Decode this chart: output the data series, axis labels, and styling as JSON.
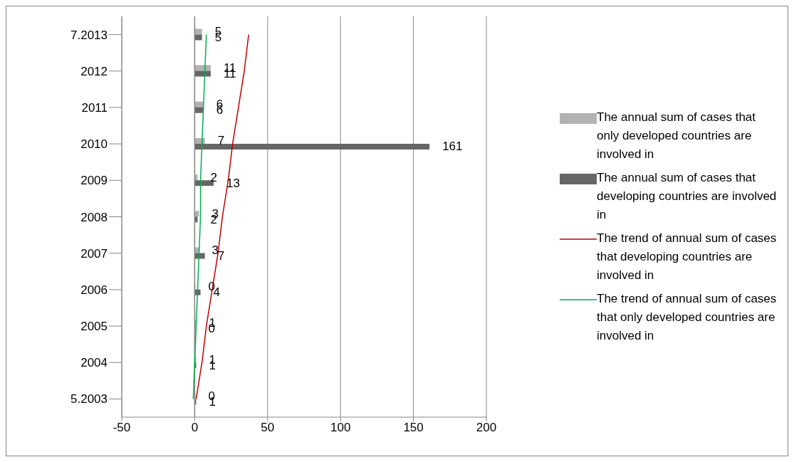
{
  "chart_data": {
    "type": "bar",
    "orientation": "horizontal",
    "categories": [
      "7.2013",
      "2012",
      "2011",
      "2010",
      "2009",
      "2008",
      "2007",
      "2006",
      "2005",
      "2004",
      "5.2003"
    ],
    "series": [
      {
        "name": "The annual sum of cases that only developed countries are involved in",
        "color": "#b2b2b2",
        "values": [
          5,
          11,
          6,
          7,
          2,
          3,
          3,
          0,
          1,
          1,
          0
        ],
        "value_labels": [
          "5",
          "11",
          "6",
          "7",
          "2",
          "3",
          "3",
          "0",
          "1",
          "1",
          "0"
        ]
      },
      {
        "name": "The annual sum of  cases that developing countries are involved in",
        "color": "#666666",
        "values": [
          5,
          11,
          6,
          161,
          13,
          2,
          7,
          4,
          0,
          1,
          1
        ],
        "value_labels": [
          "5",
          "11",
          "6",
          "161",
          "13",
          "2",
          "7",
          "4",
          "0",
          "1",
          "1"
        ]
      },
      {
        "name": "The trend of annual sum of cases that developing countries are involved in",
        "type": "line",
        "color": "#c00000",
        "values": [
          37,
          34,
          30,
          26,
          23,
          19,
          16,
          12,
          8,
          5,
          1
        ]
      },
      {
        "name": "The trend of annual sum of cases that only developed countries are involved in",
        "type": "line",
        "color": "#00b050",
        "values": [
          8,
          7,
          6,
          5,
          4,
          4,
          3,
          2,
          1,
          0,
          -1
        ]
      }
    ],
    "xlim": [
      -50,
      200
    ],
    "xticks": [
      -50,
      0,
      50,
      100,
      150,
      200
    ],
    "grid": "x",
    "legend": "right",
    "marker": "none",
    "line_style": "solid"
  }
}
